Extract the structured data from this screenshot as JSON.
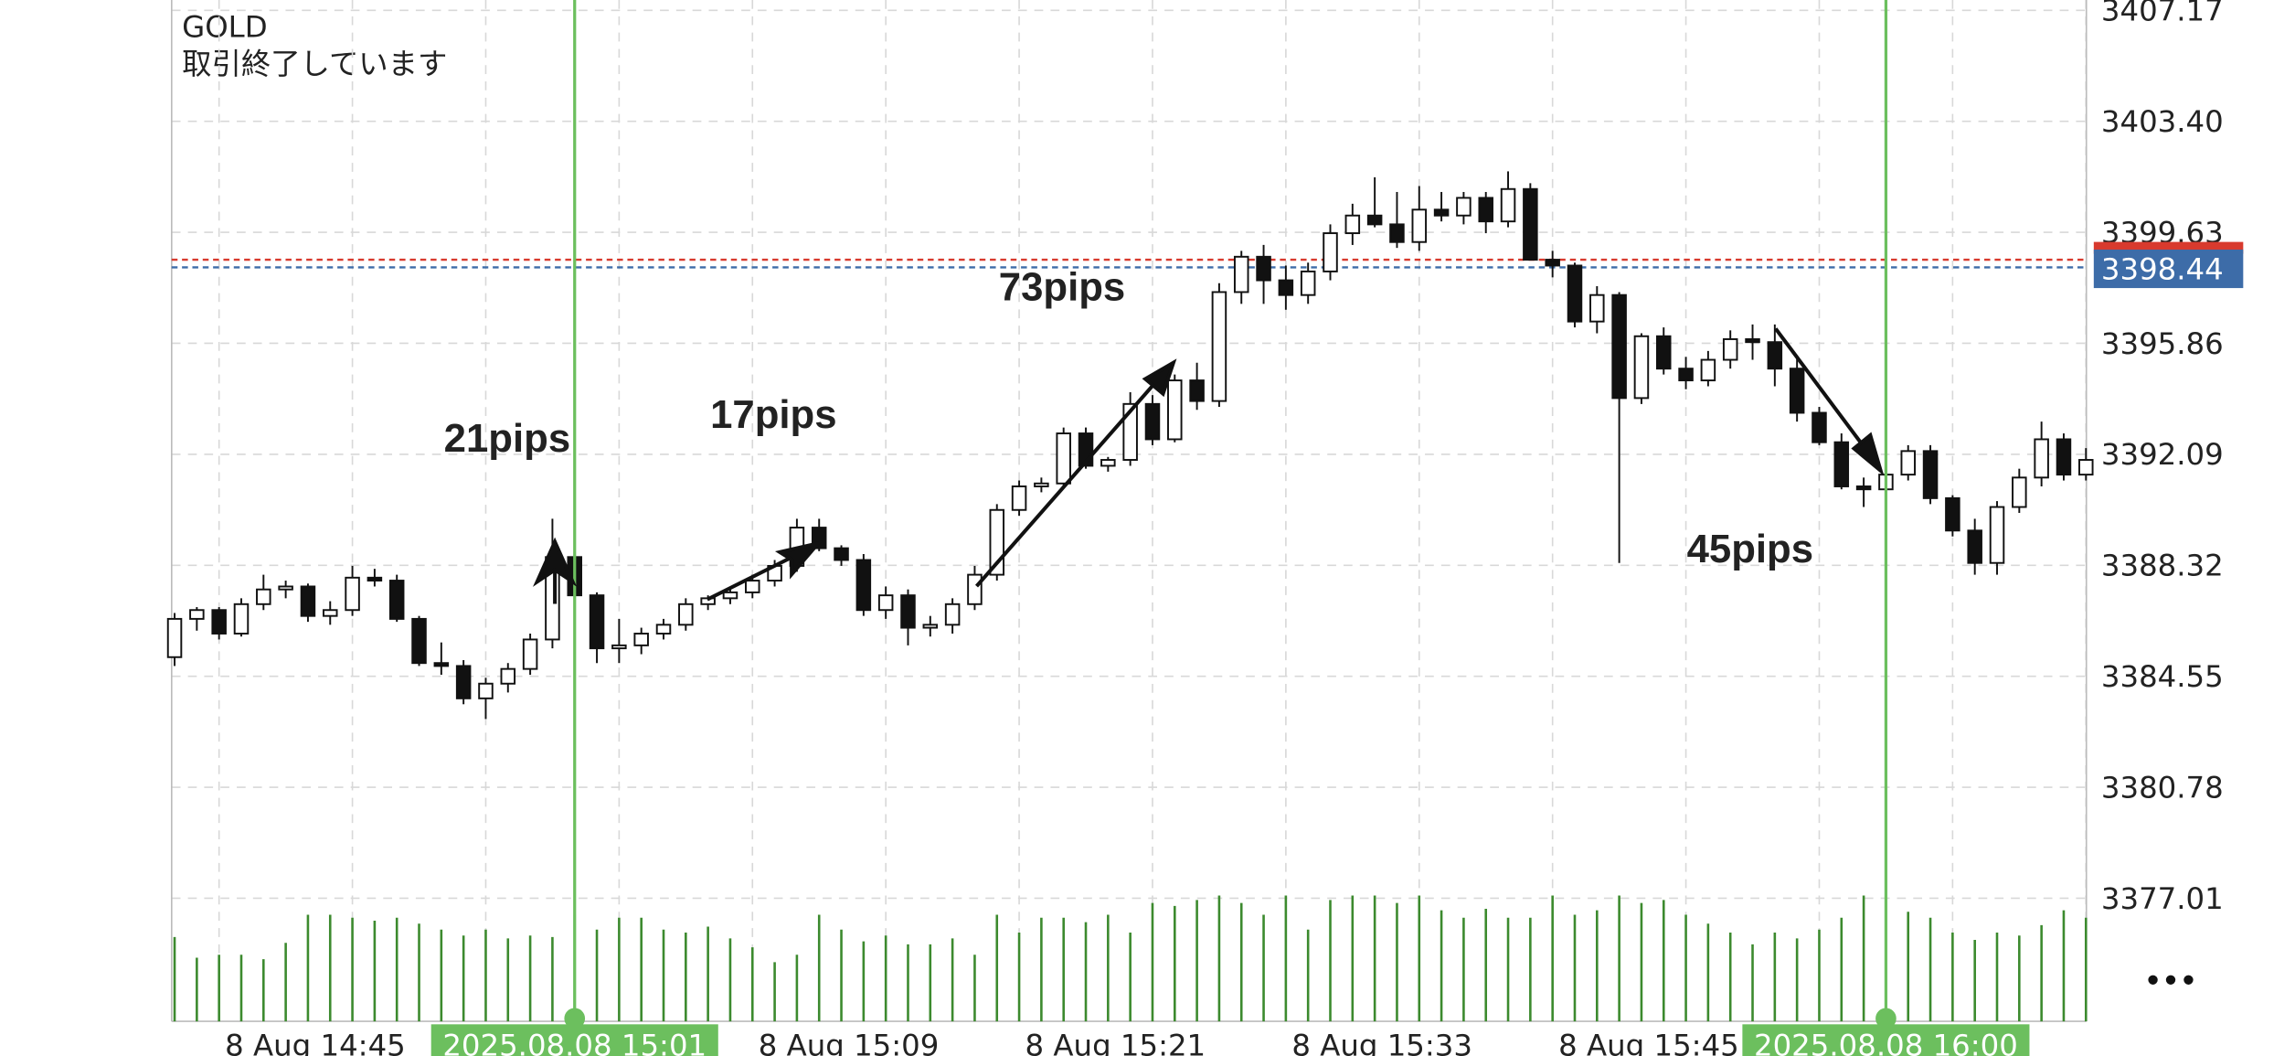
{
  "header": {
    "symbol": "GOLD",
    "status": "取引終了しています"
  },
  "chart_data": {
    "type": "candlestick",
    "categories": [
      null,
      null,
      "8 Aug 14:45",
      null,
      null,
      null,
      null,
      null,
      null,
      null,
      null,
      null,
      null,
      null,
      null,
      null,
      null,
      null,
      null,
      null,
      null,
      null,
      null,
      null,
      null,
      null,
      "8 Aug 15:09",
      null,
      null,
      null,
      null,
      null,
      null,
      null,
      null,
      null,
      null,
      null,
      "8 Aug 15:21",
      null,
      null,
      null,
      null,
      null,
      null,
      null,
      null,
      null,
      null,
      null,
      "8 Aug 15:33",
      null,
      null,
      null,
      null,
      null,
      null,
      null,
      null,
      null,
      null,
      null,
      "8 Aug 15:45",
      null,
      null,
      null,
      null,
      null,
      null,
      null,
      null,
      null,
      null,
      null,
      null,
      null,
      null,
      null,
      null,
      null,
      null,
      null,
      null,
      null,
      null,
      null,
      null
    ],
    "ohlc": [
      [
        3385.2,
        3386.7,
        3384.9,
        3386.5
      ],
      [
        3386.5,
        3386.9,
        3386.1,
        3386.8
      ],
      [
        3386.8,
        3386.9,
        3385.8,
        3386.0
      ],
      [
        3386.0,
        3387.2,
        3385.9,
        3387.0
      ],
      [
        3387.0,
        3388.0,
        3386.8,
        3387.5
      ],
      [
        3387.5,
        3387.8,
        3387.2,
        3387.6
      ],
      [
        3387.6,
        3387.7,
        3386.4,
        3386.6
      ],
      [
        3386.6,
        3387.1,
        3386.3,
        3386.8
      ],
      [
        3386.8,
        3388.3,
        3386.6,
        3387.9
      ],
      [
        3387.9,
        3388.2,
        3387.6,
        3387.8
      ],
      [
        3387.8,
        3388.0,
        3386.4,
        3386.5
      ],
      [
        3386.5,
        3386.6,
        3384.9,
        3385.0
      ],
      [
        3385.0,
        3385.7,
        3384.6,
        3384.9
      ],
      [
        3384.9,
        3385.1,
        3383.6,
        3383.8
      ],
      [
        3383.8,
        3384.5,
        3383.1,
        3384.3
      ],
      [
        3384.3,
        3385.0,
        3384.0,
        3384.8
      ],
      [
        3384.8,
        3386.0,
        3384.6,
        3385.8
      ],
      [
        3385.8,
        3389.9,
        3385.5,
        3388.6
      ],
      [
        3388.6,
        3388.8,
        3387.2,
        3387.3
      ],
      [
        3387.3,
        3387.4,
        3385.0,
        3385.5
      ],
      [
        3385.5,
        3386.5,
        3385.0,
        3385.6
      ],
      [
        3385.6,
        3386.2,
        3385.3,
        3386.0
      ],
      [
        3386.0,
        3386.5,
        3385.8,
        3386.3
      ],
      [
        3386.3,
        3387.2,
        3386.1,
        3387.0
      ],
      [
        3387.0,
        3387.3,
        3386.8,
        3387.2
      ],
      [
        3387.2,
        3387.6,
        3387.0,
        3387.4
      ],
      [
        3387.4,
        3388.0,
        3387.2,
        3387.8
      ],
      [
        3387.8,
        3388.5,
        3387.6,
        3388.3
      ],
      [
        3388.3,
        3389.9,
        3388.1,
        3389.6
      ],
      [
        3389.6,
        3389.9,
        3388.8,
        3388.9
      ],
      [
        3388.9,
        3389.0,
        3388.3,
        3388.5
      ],
      [
        3388.5,
        3388.7,
        3386.6,
        3386.8
      ],
      [
        3386.8,
        3387.6,
        3386.5,
        3387.3
      ],
      [
        3387.3,
        3387.5,
        3385.6,
        3386.2
      ],
      [
        3386.2,
        3386.6,
        3385.9,
        3386.3
      ],
      [
        3386.3,
        3387.2,
        3386.0,
        3387.0
      ],
      [
        3387.0,
        3388.3,
        3386.8,
        3388.0
      ],
      [
        3388.0,
        3390.4,
        3387.8,
        3390.2
      ],
      [
        3390.2,
        3391.2,
        3390.0,
        3391.0
      ],
      [
        3391.0,
        3391.3,
        3390.8,
        3391.1
      ],
      [
        3391.1,
        3393.0,
        3391.0,
        3392.8
      ],
      [
        3392.8,
        3393.0,
        3391.6,
        3391.7
      ],
      [
        3391.7,
        3392.0,
        3391.5,
        3391.9
      ],
      [
        3391.9,
        3394.2,
        3391.7,
        3393.8
      ],
      [
        3393.8,
        3394.1,
        3392.4,
        3392.6
      ],
      [
        3392.6,
        3394.8,
        3392.5,
        3394.6
      ],
      [
        3394.6,
        3395.2,
        3393.6,
        3393.9
      ],
      [
        3393.9,
        3397.9,
        3393.7,
        3397.6
      ],
      [
        3397.6,
        3399.0,
        3397.2,
        3398.8
      ],
      [
        3398.8,
        3399.2,
        3397.2,
        3398.0
      ],
      [
        3398.0,
        3398.5,
        3397.0,
        3397.5
      ],
      [
        3397.5,
        3398.6,
        3397.2,
        3398.3
      ],
      [
        3398.3,
        3399.9,
        3398.0,
        3399.6
      ],
      [
        3399.6,
        3400.6,
        3399.2,
        3400.2
      ],
      [
        3400.2,
        3401.5,
        3399.8,
        3399.9
      ],
      [
        3399.9,
        3401.0,
        3399.1,
        3399.3
      ],
      [
        3399.3,
        3401.2,
        3399.0,
        3400.4
      ],
      [
        3400.4,
        3401.0,
        3400.0,
        3400.2
      ],
      [
        3400.2,
        3401.0,
        3399.9,
        3400.8
      ],
      [
        3400.8,
        3401.0,
        3399.6,
        3400.0
      ],
      [
        3400.0,
        3401.7,
        3399.8,
        3401.1
      ],
      [
        3401.1,
        3401.3,
        3398.7,
        3398.7
      ],
      [
        3398.7,
        3399.0,
        3398.1,
        3398.5
      ],
      [
        3398.5,
        3398.6,
        3396.4,
        3396.6
      ],
      [
        3396.6,
        3397.8,
        3396.2,
        3397.5
      ],
      [
        3397.5,
        3397.6,
        3388.4,
        3394.0
      ],
      [
        3394.0,
        3396.2,
        3393.8,
        3396.1
      ],
      [
        3396.1,
        3396.4,
        3394.8,
        3395.0
      ],
      [
        3395.0,
        3395.4,
        3394.3,
        3394.6
      ],
      [
        3394.6,
        3395.6,
        3394.4,
        3395.3
      ],
      [
        3395.3,
        3396.3,
        3395.0,
        3396.0
      ],
      [
        3396.0,
        3396.5,
        3395.3,
        3395.9
      ],
      [
        3395.9,
        3396.5,
        3394.4,
        3395.0
      ],
      [
        3395.0,
        3395.4,
        3393.2,
        3393.5
      ],
      [
        3393.5,
        3393.7,
        3392.4,
        3392.5
      ],
      [
        3392.5,
        3392.8,
        3390.9,
        3391.0
      ],
      [
        3391.0,
        3391.3,
        3390.3,
        3390.9
      ],
      [
        3390.9,
        3391.7,
        3390.6,
        3391.4
      ],
      [
        3391.4,
        3392.4,
        3391.2,
        3392.2
      ],
      [
        3392.2,
        3392.4,
        3390.4,
        3390.6
      ],
      [
        3390.6,
        3390.7,
        3389.3,
        3389.5
      ],
      [
        3389.5,
        3389.9,
        3388.0,
        3388.4
      ],
      [
        3388.4,
        3390.5,
        3388.0,
        3390.3
      ],
      [
        3390.3,
        3391.6,
        3390.1,
        3391.3
      ],
      [
        3391.3,
        3393.2,
        3391.0,
        3392.6
      ],
      [
        3392.6,
        3392.8,
        3391.2,
        3391.4
      ],
      [
        3391.4,
        3392.3,
        3391.2,
        3391.9
      ]
    ],
    "volumes": [
      57,
      43,
      45,
      45,
      42,
      53,
      72,
      72,
      70,
      68,
      70,
      66,
      62,
      58,
      62,
      56,
      58,
      57,
      72,
      62,
      70,
      70,
      62,
      60,
      64,
      56,
      50,
      40,
      45,
      72,
      62,
      54,
      58,
      52,
      52,
      56,
      45,
      72,
      60,
      70,
      70,
      67,
      72,
      60,
      80,
      78,
      82,
      85,
      80,
      72,
      85,
      62,
      82,
      85,
      85,
      80,
      85,
      75,
      70,
      76,
      70,
      70,
      85,
      72,
      75,
      85,
      80,
      82,
      72,
      66,
      60,
      52,
      60,
      56,
      62,
      70,
      85,
      80,
      74,
      70,
      60,
      55,
      60,
      58,
      65,
      75,
      70
    ],
    "volume_color": "#3c8a2e",
    "ylim": [
      3372.83,
      3407.52
    ],
    "yticks": [
      3407.17,
      {
        "value": 3403.4,
        "label": "3403.40"
      },
      3399.63,
      3395.86,
      3392.09,
      3388.32,
      3384.55,
      3380.78,
      3377.01
    ],
    "grid": true,
    "bid_line": {
      "value": 3398.44,
      "color": "#3d6ca8"
    },
    "ask_line": {
      "value": 3398.7,
      "color": "#d83a2e"
    },
    "crosshairs": [
      {
        "index": 18,
        "label": "2025.08.08 15:01"
      },
      {
        "index": 77,
        "label": "2025.08.08 16:00"
      }
    ],
    "crosshair_color": "#6cbf5e",
    "annotations": [
      "21pips",
      "17pips",
      "73pips",
      "45pips"
    ]
  }
}
